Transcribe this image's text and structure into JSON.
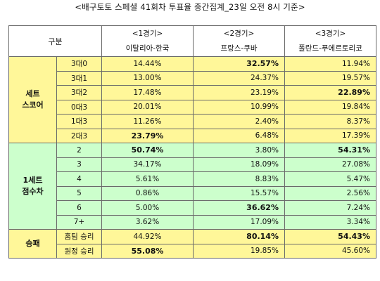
{
  "title": "<배구토토 스페셜 41회차 투표율 중간집계_23일 오전 8시 기준>",
  "header": {
    "gubun": "구분",
    "games": [
      {
        "index": "<1경기>",
        "match": "이탈리아-한국"
      },
      {
        "index": "<2경기>",
        "match": "프랑스-쿠바"
      },
      {
        "index": "<3경기>",
        "match": "폴란드-푸에르토리코"
      }
    ]
  },
  "sections": [
    {
      "group_line1": "세트",
      "group_line2": "스코어",
      "color": "#fff799",
      "rows": [
        {
          "label": "3대0",
          "values": [
            "14.44%",
            "32.57%",
            "11.94%"
          ],
          "bold": [
            false,
            true,
            false
          ]
        },
        {
          "label": "3대1",
          "values": [
            "13.00%",
            "24.37%",
            "19.57%"
          ],
          "bold": [
            false,
            false,
            false
          ]
        },
        {
          "label": "3대2",
          "values": [
            "17.48%",
            "23.19%",
            "22.89%"
          ],
          "bold": [
            false,
            false,
            true
          ]
        },
        {
          "label": "0대3",
          "values": [
            "20.01%",
            "10.99%",
            "19.84%"
          ],
          "bold": [
            false,
            false,
            false
          ]
        },
        {
          "label": "1대3",
          "values": [
            "11.26%",
            "2.40%",
            "8.37%"
          ],
          "bold": [
            false,
            false,
            false
          ]
        },
        {
          "label": "2대3",
          "values": [
            "23.79%",
            "6.48%",
            "17.39%"
          ],
          "bold": [
            true,
            false,
            false
          ]
        }
      ]
    },
    {
      "group_line1": "1세트",
      "group_line2": "점수차",
      "color": "#ccffcc",
      "rows": [
        {
          "label": "2",
          "values": [
            "50.74%",
            "3.80%",
            "54.31%"
          ],
          "bold": [
            true,
            false,
            true
          ]
        },
        {
          "label": "3",
          "values": [
            "34.17%",
            "18.09%",
            "27.08%"
          ],
          "bold": [
            false,
            false,
            false
          ]
        },
        {
          "label": "4",
          "values": [
            "5.61%",
            "8.83%",
            "5.47%"
          ],
          "bold": [
            false,
            false,
            false
          ]
        },
        {
          "label": "5",
          "values": [
            "0.86%",
            "15.57%",
            "2.56%"
          ],
          "bold": [
            false,
            false,
            false
          ]
        },
        {
          "label": "6",
          "values": [
            "5.00%",
            "36.62%",
            "7.24%"
          ],
          "bold": [
            false,
            true,
            false
          ]
        },
        {
          "label": "7+",
          "values": [
            "3.62%",
            "17.09%",
            "3.34%"
          ],
          "bold": [
            false,
            false,
            false
          ]
        }
      ]
    },
    {
      "group_line1": "승패",
      "group_line2": "",
      "color": "#fff799",
      "rows": [
        {
          "label": "홈팀 승리",
          "values": [
            "44.92%",
            "80.14%",
            "54.43%"
          ],
          "bold": [
            false,
            true,
            true
          ]
        },
        {
          "label": "원정 승리",
          "values": [
            "55.08%",
            "19.85%",
            "45.60%"
          ],
          "bold": [
            true,
            false,
            false
          ]
        }
      ]
    }
  ]
}
